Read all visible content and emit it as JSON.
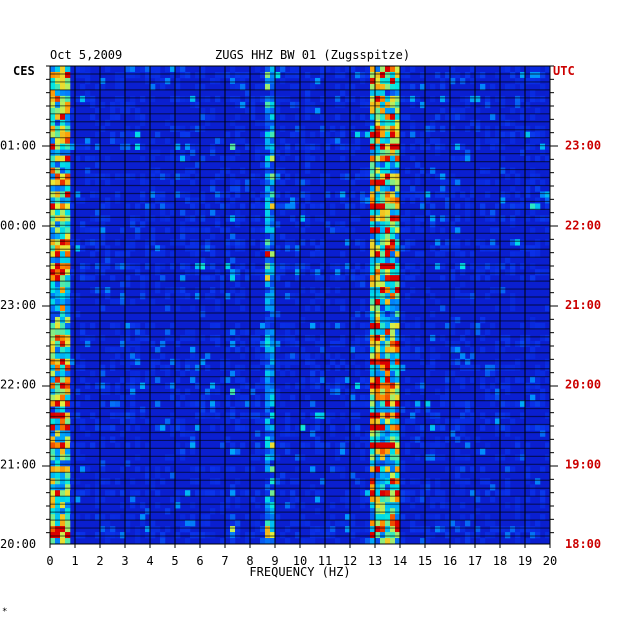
{
  "header": {
    "date": "Oct 5,2009",
    "station": "ZUGS HHZ BW 01 (Zugsspitze)"
  },
  "chart_data": {
    "type": "heatmap",
    "title": "ZUGS HHZ BW 01 (Zugsspitze)",
    "date": "Oct 5,2009",
    "xlabel": "FREQUENCY (HZ)",
    "xlim": [
      0,
      20
    ],
    "x_ticks": [
      "0",
      "1",
      "2",
      "3",
      "4",
      "5",
      "6",
      "7",
      "8",
      "9",
      "10",
      "11",
      "12",
      "13",
      "14",
      "15",
      "16",
      "17",
      "18",
      "19",
      "20"
    ],
    "left_axis": {
      "label": "CES",
      "ticks": [
        "01:00",
        "00:00",
        "23:00",
        "22:00",
        "21:00",
        "20:00"
      ]
    },
    "right_axis": {
      "label": "UTC",
      "ticks": [
        "23:00",
        "22:00",
        "21:00",
        "20:00",
        "19:00",
        "18:00"
      ]
    },
    "grid": true,
    "bands": [
      {
        "name": "low-frequency",
        "range_hz": [
          0.1,
          0.8
        ]
      },
      {
        "name": "narrow band",
        "range_hz": [
          8.6,
          9.0
        ]
      },
      {
        "name": "dominant band",
        "range_hz": [
          12.9,
          14.0
        ]
      }
    ]
  },
  "colors": {
    "background": "#0a1fd0",
    "left_labels": "#000000",
    "right_labels": "#cc0000",
    "grid": "#000000"
  },
  "footer_mark": "*"
}
